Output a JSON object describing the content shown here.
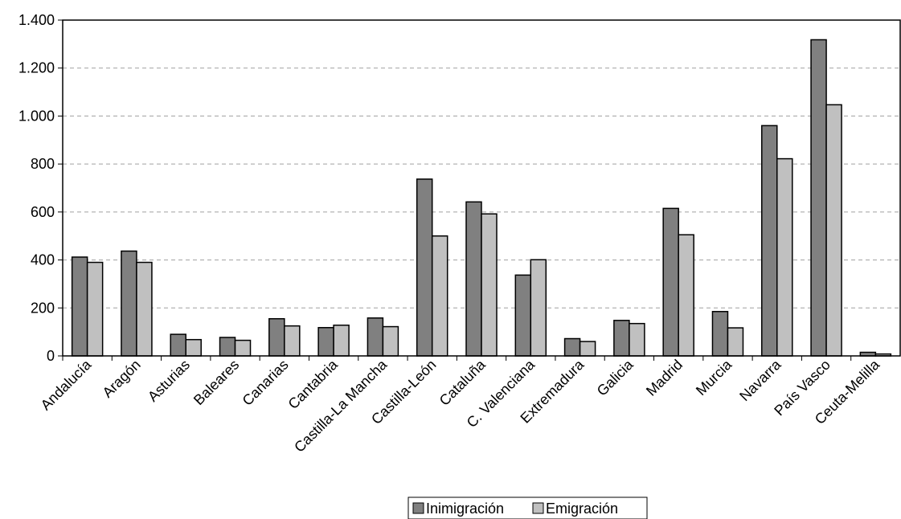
{
  "chart_data": {
    "type": "bar",
    "title": "",
    "xlabel": "",
    "ylabel": "",
    "ylim": [
      0,
      1400
    ],
    "yticks": [
      0,
      200,
      400,
      600,
      800,
      1000,
      1200,
      1400
    ],
    "ytick_labels": [
      "0",
      "200",
      "400",
      "600",
      "800",
      "1.000",
      "1.200",
      "1.400"
    ],
    "grid": "horizontal dashed",
    "legend_position": "bottom-center",
    "categories": [
      "Andalucía",
      "Aragón",
      "Asturias",
      "Baleares",
      "Canarias",
      "Cantabria",
      "Castilla-La Mancha",
      "Castilla-León",
      "Cataluña",
      "C. Valenciana",
      "Extremadura",
      "Galicia",
      "Madrid",
      "Murcia",
      "Navarra",
      "País Vasco",
      "Ceuta-Melilla"
    ],
    "series": [
      {
        "name": "Inimigración",
        "color": "#808080",
        "values": [
          412,
          437,
          90,
          77,
          155,
          118,
          158,
          737,
          642,
          337,
          72,
          148,
          615,
          185,
          960,
          1318,
          15
        ]
      },
      {
        "name": "Emigración",
        "color": "#c0c0c0",
        "values": [
          390,
          390,
          68,
          65,
          125,
          128,
          122,
          500,
          592,
          401,
          60,
          135,
          505,
          117,
          822,
          1047,
          8
        ]
      }
    ]
  }
}
